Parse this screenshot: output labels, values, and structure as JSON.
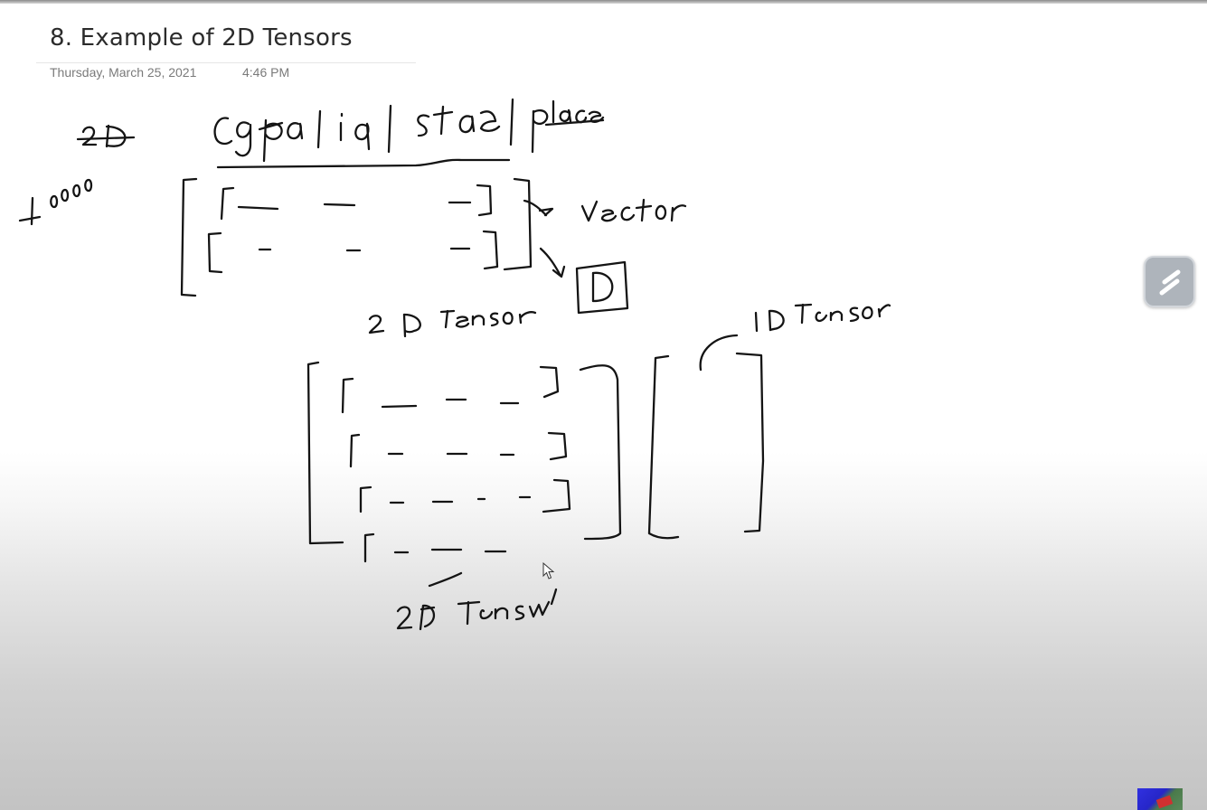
{
  "page": {
    "title": "8. Example of 2D Tensors",
    "date": "Thursday, March 25, 2021",
    "time": "4:46 PM"
  },
  "ink": {
    "header_columns": "cgpa | iq | state | placement",
    "strikethrough_note": "2D",
    "side_number": "10000",
    "label_vector": "vector",
    "label_boxed": "D",
    "label_2d_tensor_upper": "2D Tensor",
    "label_1d_tensor": "1D Tensor",
    "label_2d_tensor_lower": "2D Tensor"
  },
  "controls": {
    "pen_tool_icon": "pen-icon"
  },
  "colors": {
    "ink": "#141414",
    "title_text": "#2b2b2b",
    "meta_text": "#7a7a7a",
    "pen_button": "#aeb4bb"
  }
}
